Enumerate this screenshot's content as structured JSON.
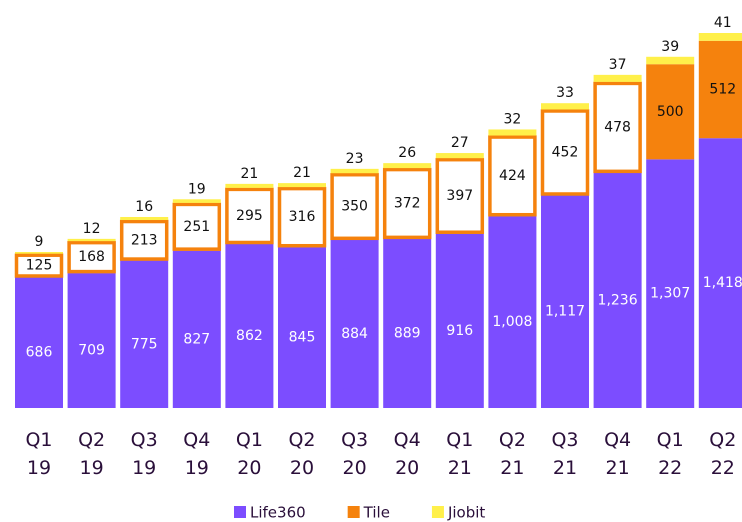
{
  "chart_data": {
    "type": "stacked_bar",
    "categories": [
      "Q1 19",
      "Q2 19",
      "Q3 19",
      "Q4 19",
      "Q1 20",
      "Q2 20",
      "Q3 20",
      "Q4 20",
      "Q1 21",
      "Q2 21",
      "Q3 21",
      "Q4 21",
      "Q1 22",
      "Q2 22"
    ],
    "series": [
      {
        "name": "Life360",
        "color": "#7c4dff",
        "label_color": "#ffffff",
        "values": [
          686,
          709,
          775,
          827,
          862,
          845,
          884,
          889,
          916,
          1008,
          1117,
          1236,
          1307,
          1418
        ],
        "value_labels": [
          "686",
          "709",
          "775",
          "827",
          "862",
          "845",
          "884",
          "889",
          "916",
          "1,008",
          "1,117",
          "1,236",
          "1,307",
          "1,418"
        ]
      },
      {
        "name": "Tile",
        "color": "#f5820d",
        "label_color": "#111111",
        "values": [
          125,
          168,
          213,
          251,
          295,
          316,
          350,
          372,
          397,
          424,
          452,
          478,
          500,
          512
        ],
        "hollow": [
          true,
          true,
          true,
          true,
          true,
          true,
          true,
          true,
          true,
          true,
          true,
          true,
          false,
          false
        ]
      },
      {
        "name": "Jiobit",
        "color": "#fff04a",
        "label_color": "#111111",
        "values": [
          9,
          12,
          16,
          19,
          21,
          21,
          23,
          26,
          27,
          32,
          33,
          37,
          39,
          41
        ]
      }
    ],
    "legend": "bottom"
  }
}
